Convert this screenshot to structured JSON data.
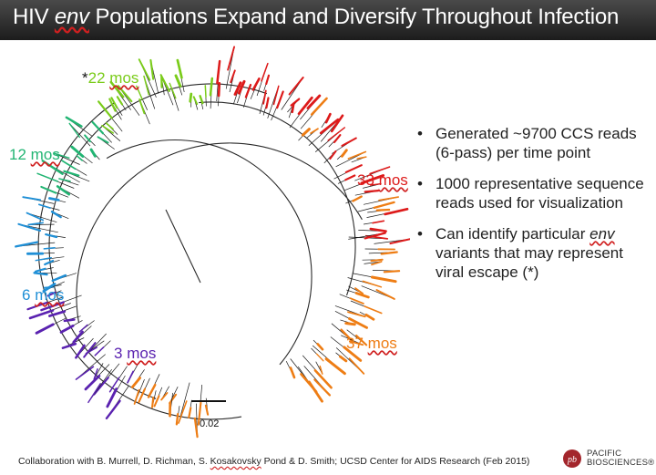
{
  "slide": {
    "title_prefix": "HIV",
    "title_env": "env",
    "title_suffix": "Populations Expand and Diversify Throughout Infection"
  },
  "time_points": [
    {
      "asterisk": "*",
      "value": "22",
      "unit": "mos",
      "color": "#7acc1a"
    },
    {
      "value": "12",
      "unit": "mos",
      "color": "#22b573"
    },
    {
      "value": "33",
      "unit": "mos",
      "color": "#dd1a1a"
    },
    {
      "value": "6",
      "unit": "mos",
      "color": "#1f8fd6"
    },
    {
      "value": "3",
      "unit": "mos",
      "color": "#5a22b0"
    },
    {
      "value": "37",
      "unit": "mos",
      "color": "#ee7d14"
    }
  ],
  "scale_label": "0.02",
  "bullets": [
    {
      "text": "Generated ~9700 CCS reads (6-pass) per time point"
    },
    {
      "text": "1000 representative sequence reads used for visualization"
    },
    {
      "pre": "Can identify particular",
      "em": "env",
      "post": "variants that may represent viral escape (*)"
    }
  ],
  "footer": {
    "a": "Collaboration with B. Murrell,  D. Richman, S.",
    "b": "Kosakovsky",
    "c": "Pond & D. Smith; UCSD Center for AIDS Research (Feb 2015)"
  },
  "logo": {
    "line1": "PACIFIC",
    "line2": "BIOSCIENCES®"
  }
}
